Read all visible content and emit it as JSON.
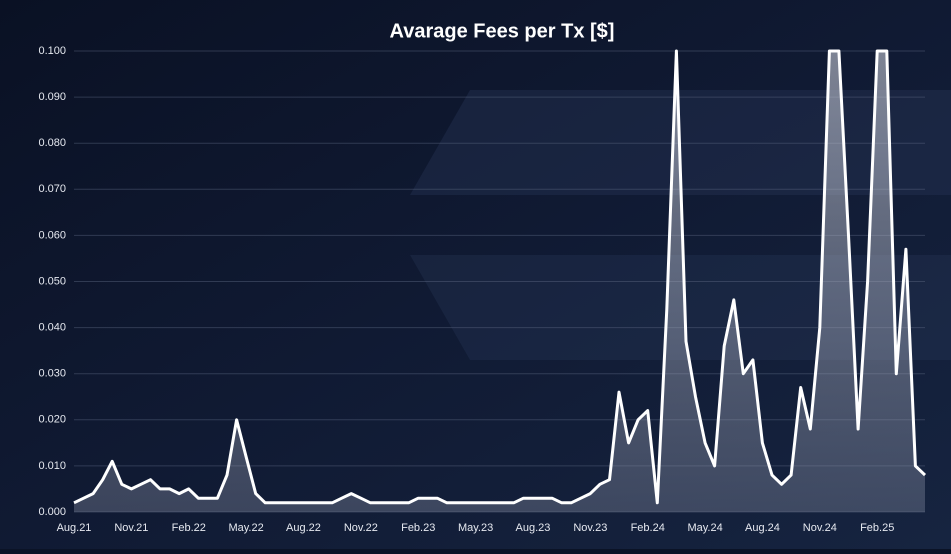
{
  "chart_data": {
    "type": "area",
    "title": "Avarage Fees per Tx [$]",
    "categories": [
      "Aug.21",
      null,
      null,
      null,
      null,
      null,
      "Nov.21",
      null,
      null,
      null,
      null,
      null,
      "Feb.22",
      null,
      null,
      null,
      null,
      null,
      "May.22",
      null,
      null,
      null,
      null,
      null,
      "Aug.22",
      null,
      null,
      null,
      null,
      null,
      "Nov.22",
      null,
      null,
      null,
      null,
      null,
      "Feb.23",
      null,
      null,
      null,
      null,
      null,
      "May.23",
      null,
      null,
      null,
      null,
      null,
      "Aug.23",
      null,
      null,
      null,
      null,
      null,
      "Nov.23",
      null,
      null,
      null,
      null,
      null,
      "Feb.24",
      null,
      null,
      null,
      null,
      null,
      "May.24",
      null,
      null,
      null,
      null,
      null,
      "Aug.24",
      null,
      null,
      null,
      null,
      null,
      "Nov.24",
      null,
      null,
      null,
      null,
      null,
      "Feb.25",
      null,
      null,
      null,
      null,
      null
    ],
    "values": [
      0.002,
      0.003,
      0.004,
      0.007,
      0.011,
      0.006,
      0.005,
      0.006,
      0.007,
      0.005,
      0.005,
      0.004,
      0.005,
      0.003,
      0.003,
      0.003,
      0.008,
      0.02,
      0.012,
      0.004,
      0.002,
      0.002,
      0.002,
      0.002,
      0.002,
      0.002,
      0.002,
      0.002,
      0.003,
      0.004,
      0.003,
      0.002,
      0.002,
      0.002,
      0.002,
      0.002,
      0.003,
      0.003,
      0.003,
      0.002,
      0.002,
      0.002,
      0.002,
      0.002,
      0.002,
      0.002,
      0.002,
      0.003,
      0.003,
      0.003,
      0.003,
      0.002,
      0.002,
      0.003,
      0.004,
      0.006,
      0.007,
      0.026,
      0.015,
      0.02,
      0.022,
      0.002,
      0.044,
      0.1,
      0.037,
      0.025,
      0.015,
      0.01,
      0.036,
      0.046,
      0.03,
      0.033,
      0.015,
      0.008,
      0.006,
      0.008,
      0.027,
      0.018,
      0.04,
      0.1,
      0.1,
      0.06,
      0.018,
      0.05,
      0.1,
      0.1,
      0.03,
      0.057,
      0.01,
      0.008
    ],
    "color": "#ffffff",
    "ylim": [
      0,
      0.1
    ],
    "yticks": [
      {
        "value": 0,
        "label": "0.000"
      },
      {
        "value": 0.01,
        "label": "0.010"
      },
      {
        "value": 0.02,
        "label": "0.020"
      },
      {
        "value": 0.03,
        "label": "0.030"
      },
      {
        "value": 0.04,
        "label": "0.040"
      },
      {
        "value": 0.05,
        "label": "0.050"
      },
      {
        "value": 0.06,
        "label": "0.060"
      },
      {
        "value": 0.07,
        "label": "0.070"
      },
      {
        "value": 0.08,
        "label": "0.080"
      },
      {
        "value": 0.09,
        "label": "0.090"
      },
      {
        "value": 0.1,
        "label": "0.100"
      }
    ],
    "grid": true
  }
}
